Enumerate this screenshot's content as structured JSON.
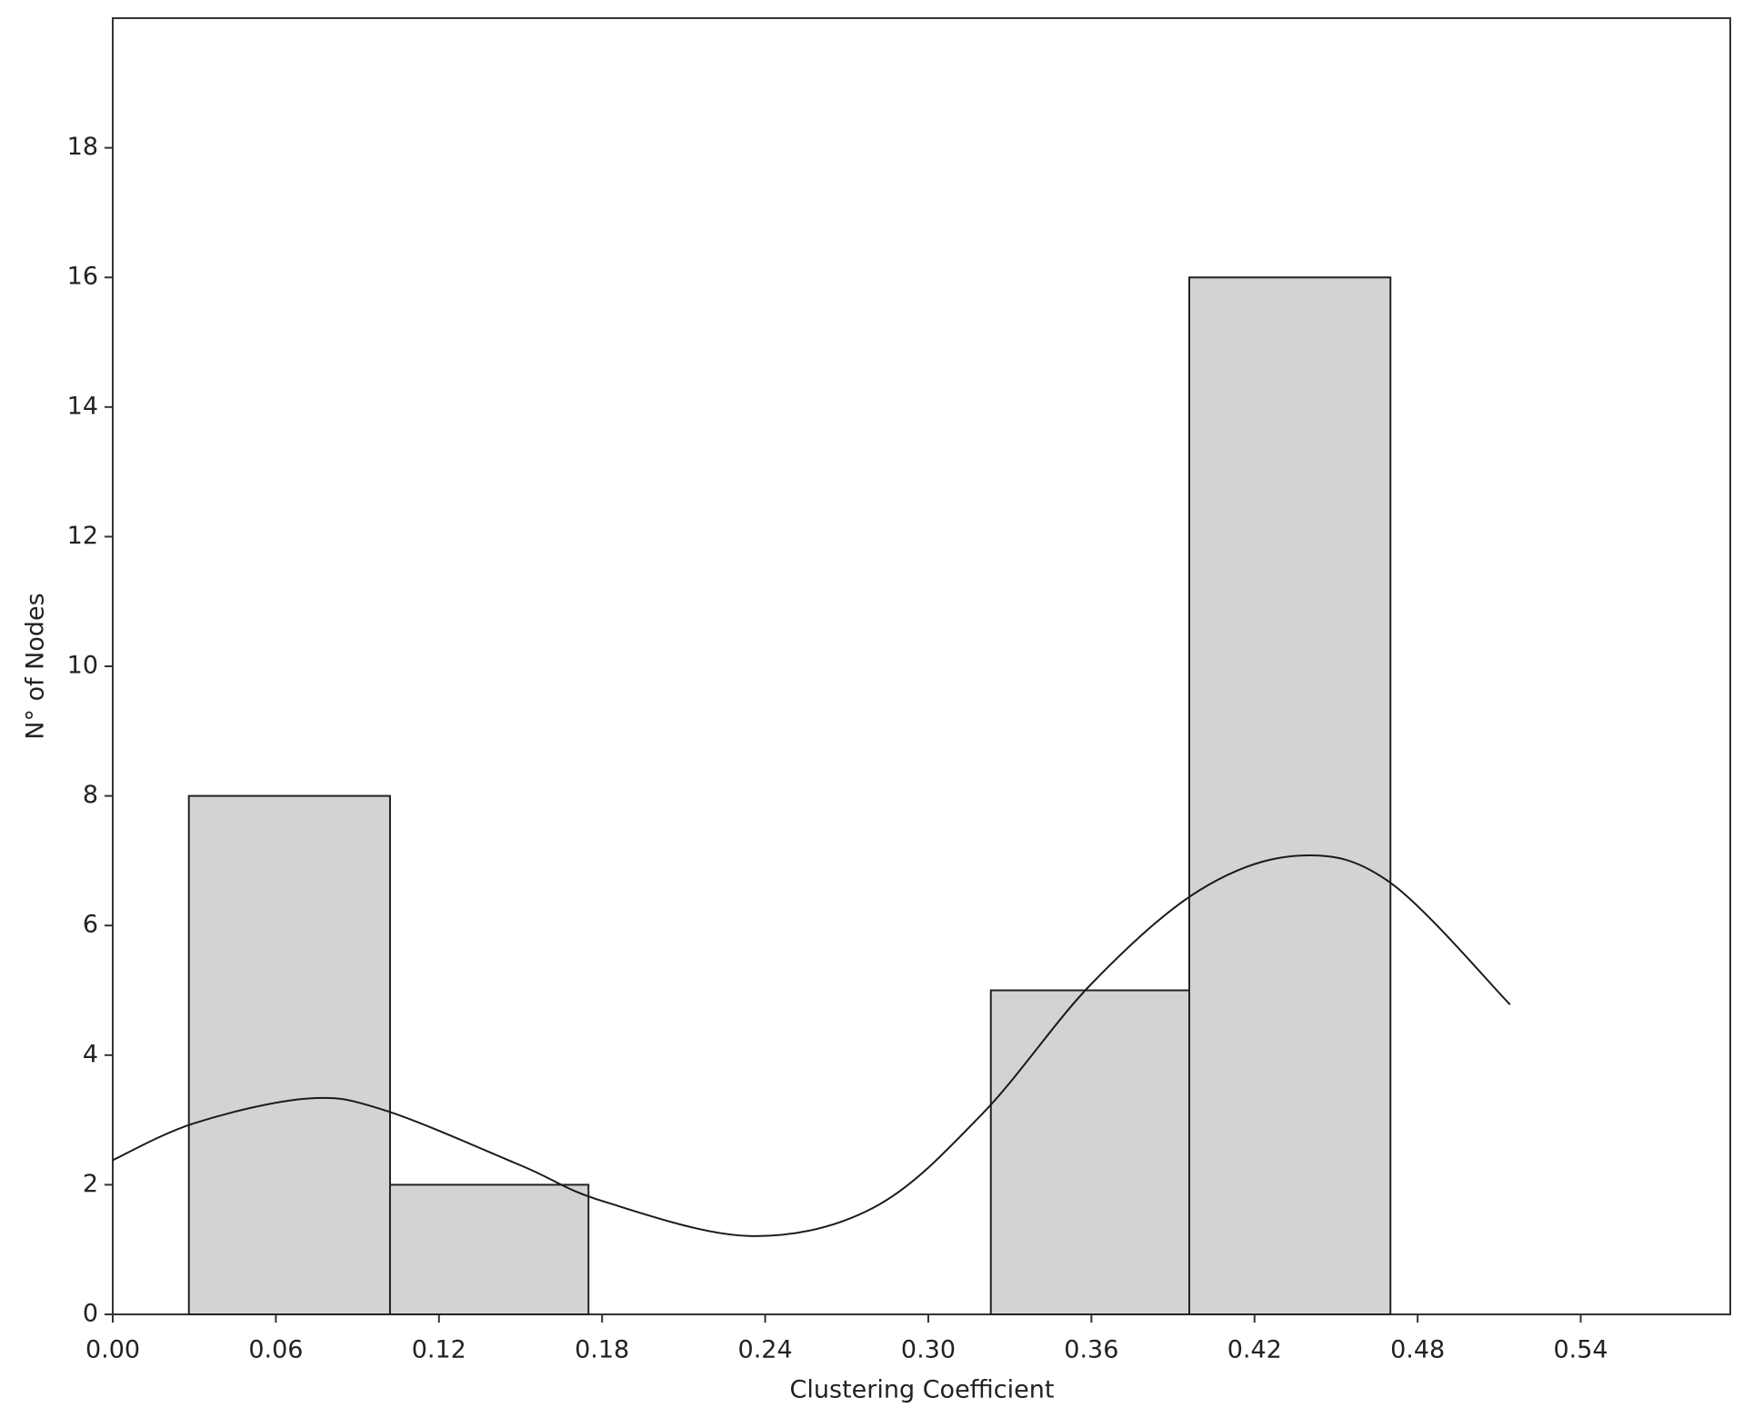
{
  "chart_data": {
    "type": "histogram",
    "x_label": "Clustering Coefficient",
    "y_label": "N° of Nodes",
    "bins": [
      0.028,
      0.102,
      0.175,
      0.249,
      0.323,
      0.396,
      0.47
    ],
    "values": [
      8,
      2,
      0,
      0,
      5,
      16
    ],
    "color": "#d3d3d3",
    "curve": {
      "x": [
        0,
        0.03,
        0.0715,
        0.1,
        0.15,
        0.18,
        0.234,
        0.28,
        0.32,
        0.36,
        0.4,
        0.437,
        0.47,
        0.514
      ],
      "values": [
        2.38,
        2.95,
        3.33,
        3.15,
        2.3,
        1.75,
        1.21,
        1.65,
        3.1,
        5.1,
        6.55,
        7.08,
        6.66,
        4.78
      ],
      "color": "#1a1a1a"
    },
    "xlim": [
      0,
      0.595
    ],
    "ylim": [
      0,
      20
    ],
    "xticks": [
      {
        "value": 0,
        "label": "0.00"
      },
      {
        "value": 0.06,
        "label": "0.06"
      },
      {
        "value": 0.12,
        "label": "0.12"
      },
      {
        "value": 0.18,
        "label": "0.18"
      },
      {
        "value": 0.24,
        "label": "0.24"
      },
      {
        "value": 0.3,
        "label": "0.30"
      },
      {
        "value": 0.36,
        "label": "0.36"
      },
      {
        "value": 0.42,
        "label": "0.42"
      },
      {
        "value": 0.48,
        "label": "0.48"
      },
      {
        "value": 0.54,
        "label": "0.54"
      }
    ],
    "yticks": [
      0,
      2,
      4,
      6,
      8,
      10,
      12,
      14,
      16,
      18
    ],
    "grid": false
  }
}
